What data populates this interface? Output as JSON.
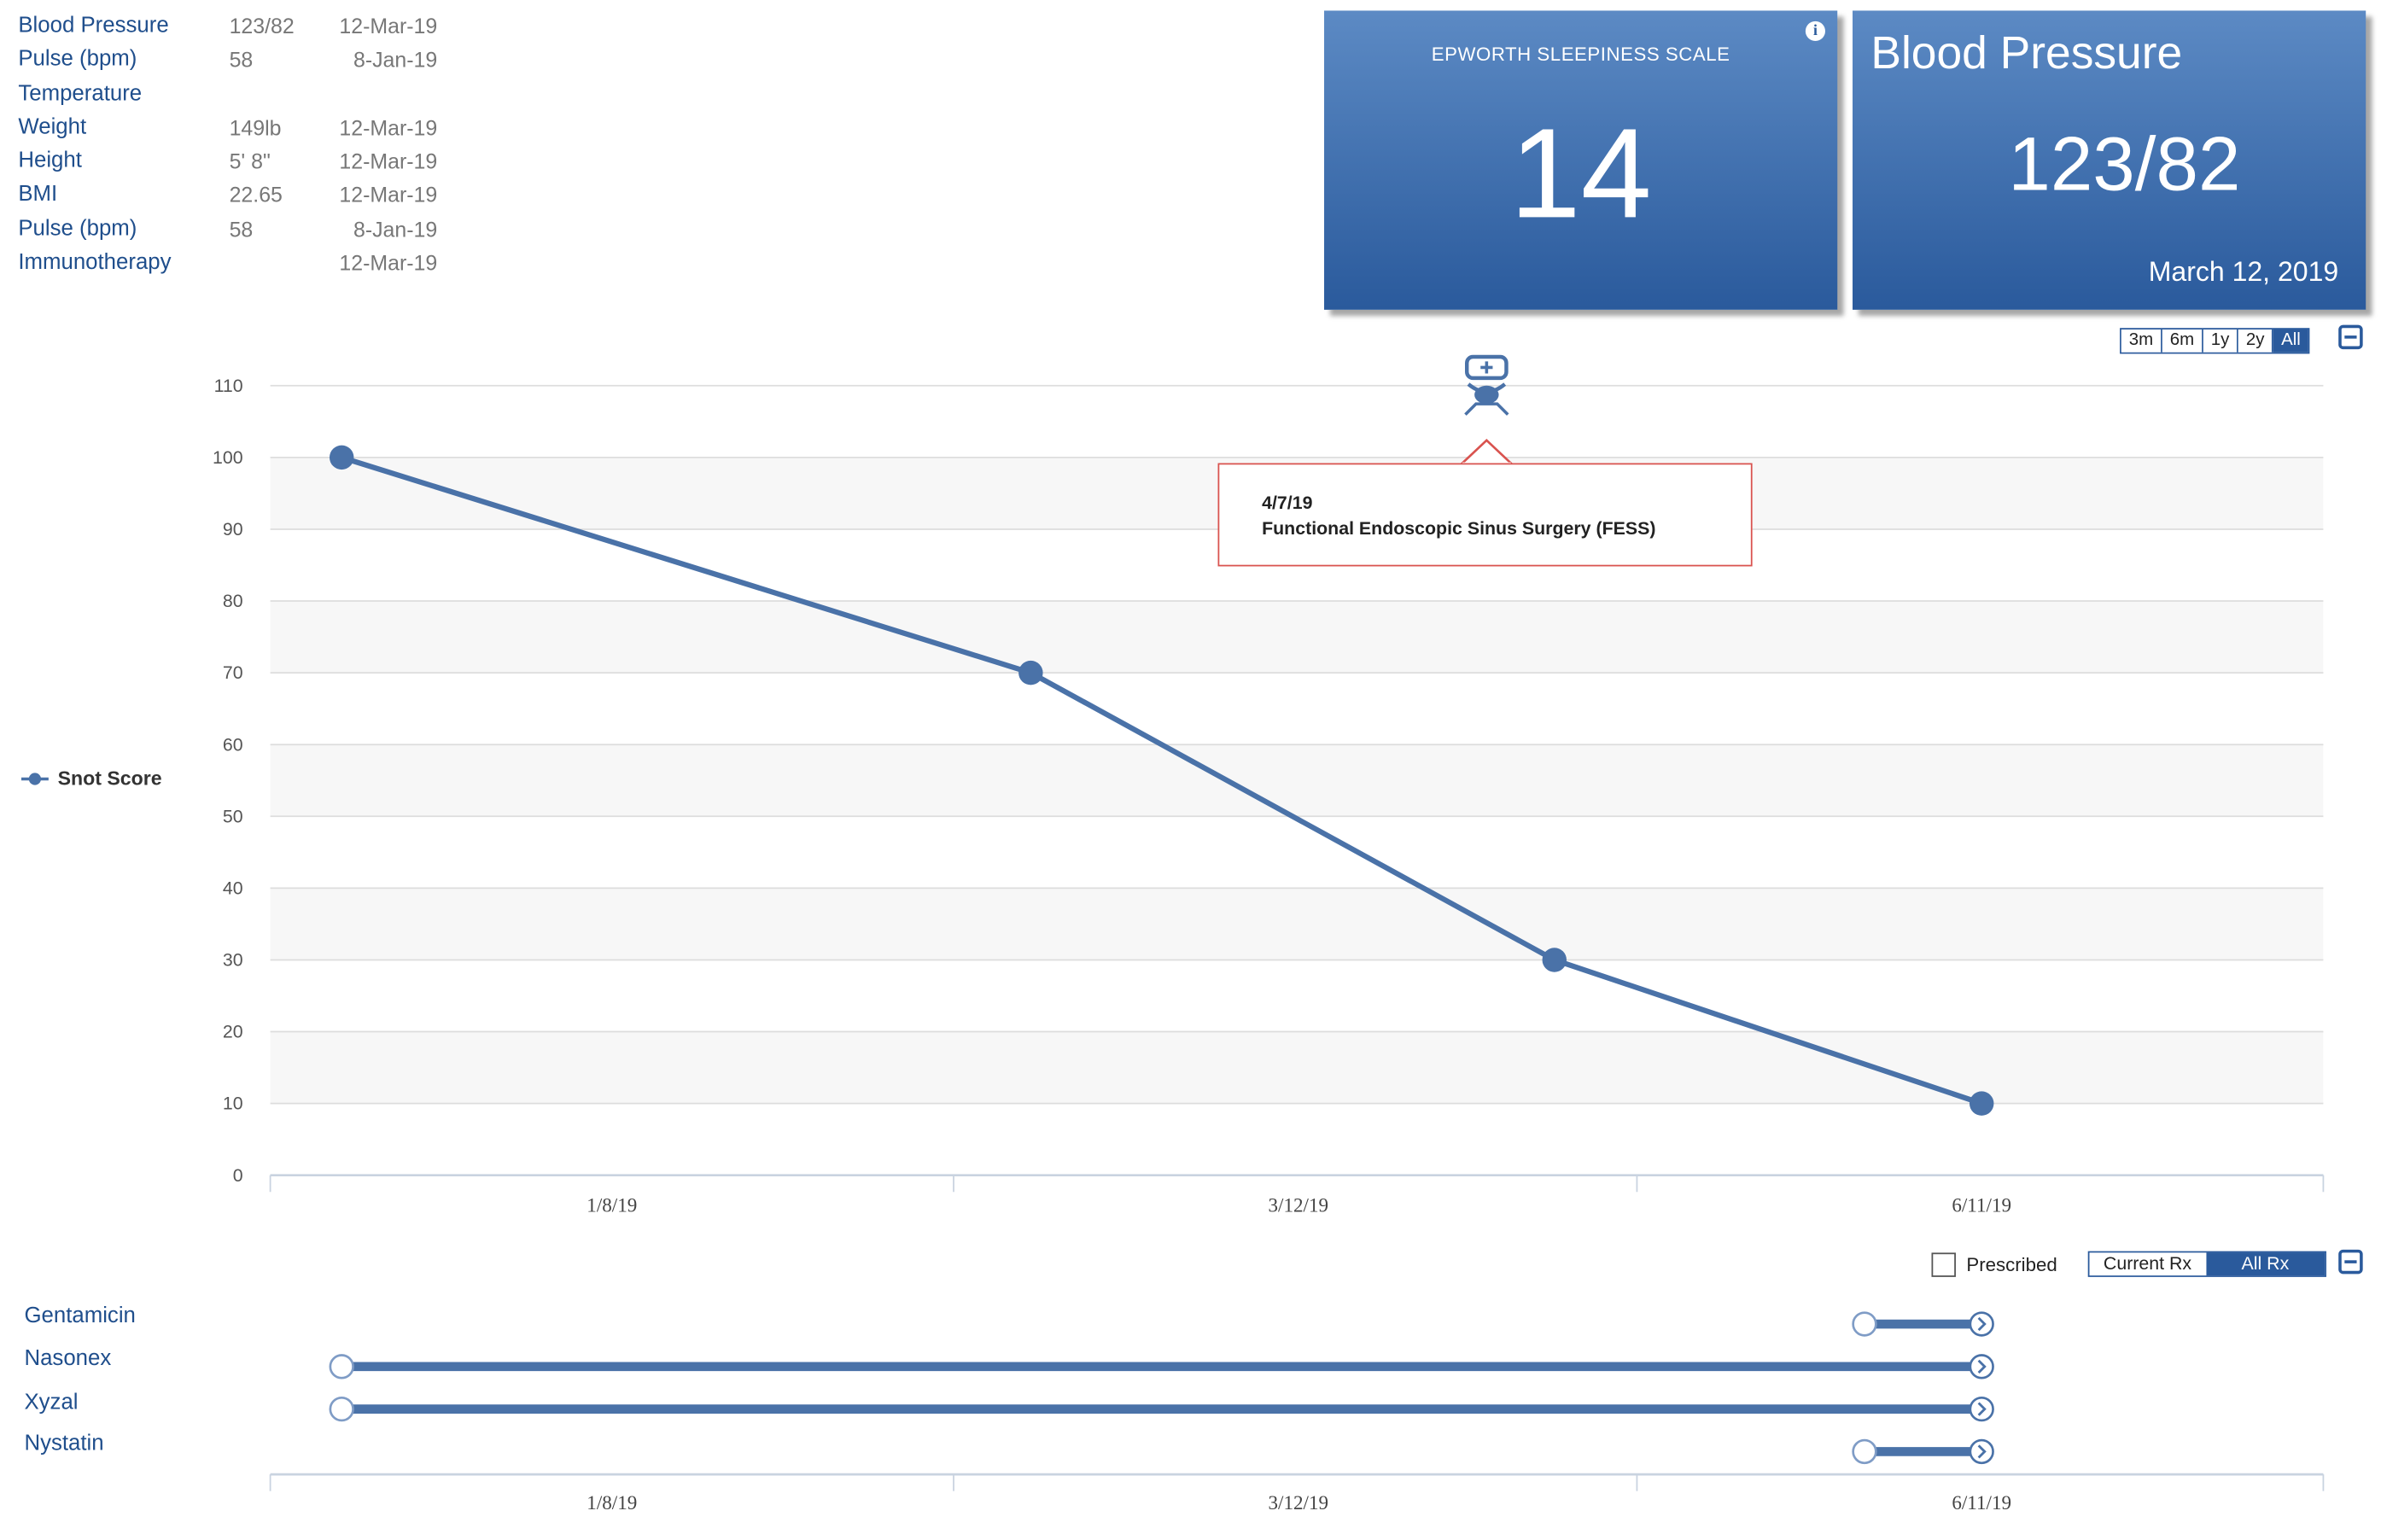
{
  "vitals": [
    {
      "name": "Blood Pressure",
      "value": "123/82",
      "date": "12-Mar-19"
    },
    {
      "name": "Pulse (bpm)",
      "value": "58",
      "date": "8-Jan-19"
    },
    {
      "name": "Temperature",
      "value": "",
      "date": ""
    },
    {
      "name": "Weight",
      "value": "149lb",
      "date": "12-Mar-19"
    },
    {
      "name": "Height",
      "value": "5' 8\"",
      "date": "12-Mar-19"
    },
    {
      "name": "BMI",
      "value": "22.65",
      "date": "12-Mar-19"
    },
    {
      "name": "Pulse (bpm)",
      "value": "58",
      "date": "8-Jan-19"
    },
    {
      "name": "Immunotherapy",
      "value": "",
      "date": "12-Mar-19"
    }
  ],
  "tiles": {
    "epworth": {
      "title": "EPWORTH SLEEPINESS SCALE",
      "value": "14",
      "info_icon": "info-icon"
    },
    "bp": {
      "title": "Blood Pressure",
      "value": "123/82",
      "date": "March 12, 2019"
    }
  },
  "range_buttons": [
    {
      "label": "3m",
      "active": false
    },
    {
      "label": "6m",
      "active": false
    },
    {
      "label": "1y",
      "active": false
    },
    {
      "label": "2y",
      "active": false
    },
    {
      "label": "All",
      "active": true
    }
  ],
  "legend": {
    "label": "Snot Score"
  },
  "tooltip": {
    "date": "4/7/19",
    "text": "Functional Endoscopic Sinus Surgery (FESS)",
    "icon": "surgeon-icon"
  },
  "chart_data": {
    "type": "line",
    "ylim": [
      0,
      110
    ],
    "y_ticks": [
      0,
      10,
      20,
      30,
      40,
      50,
      60,
      70,
      80,
      90,
      100,
      110
    ],
    "x_tick_labels": [
      "1/8/19",
      "3/12/19",
      "6/11/19"
    ],
    "series": [
      {
        "name": "Snot Score",
        "color": "#4a72a8",
        "x": [
          "2018-10-16",
          "2019-01-24",
          "2019-04-10",
          "2019-06-11"
        ],
        "y": [
          100,
          70,
          30,
          10
        ]
      }
    ],
    "event": {
      "date": "2019-04-07",
      "label": "Functional Endoscopic Sinus Surgery (FESS)"
    }
  },
  "rx_controls": {
    "prescribed_label": "Prescribed",
    "current_label": "Current Rx",
    "all_label": "All Rx"
  },
  "medications": [
    {
      "name": "Gentamicin",
      "start": "2019-05-25",
      "end": "2019-06-11"
    },
    {
      "name": "Nasonex",
      "start": "2018-10-16",
      "end": "2019-06-11"
    },
    {
      "name": "Xyzal",
      "start": "2018-10-16",
      "end": "2019-06-11"
    },
    {
      "name": "Nystatin",
      "start": "2019-05-25",
      "end": "2019-06-11"
    }
  ],
  "colors": {
    "accent": "#2a5a9c",
    "series": "#4a72a8",
    "tooltip_border": "#d9534f"
  }
}
